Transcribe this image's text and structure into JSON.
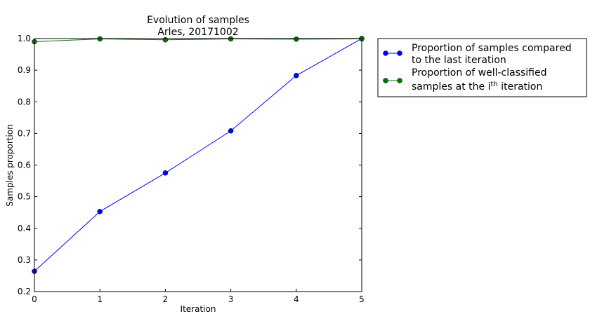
{
  "chart_data": {
    "type": "line",
    "title": "Evolution of samples",
    "subtitle": "Arles, 20171002",
    "xlabel": "Iteration",
    "ylabel": "Samples proportion",
    "x": [
      0,
      1,
      2,
      3,
      4,
      5
    ],
    "xlim": [
      0,
      5
    ],
    "ylim": [
      0.2,
      1.0
    ],
    "x_ticks": [
      "0",
      "1",
      "2",
      "3",
      "4",
      "5"
    ],
    "y_ticks": [
      "0.2",
      "0.3",
      "0.4",
      "0.5",
      "0.6",
      "0.7",
      "0.8",
      "0.9",
      "1.0"
    ],
    "grid": false,
    "legend_position": "outside-right-top",
    "series": [
      {
        "name_line1": "Proportion of samples compared",
        "name_line2": "to the last iteration",
        "color": "#0000ff",
        "values": [
          0.264,
          0.453,
          0.575,
          0.708,
          0.883,
          1.0
        ]
      },
      {
        "name_line1": "Proportion of well-classified",
        "name_line2_pre": "samples at the i",
        "name_line2_sup": "th",
        "name_line2_post": " iteration",
        "color": "#007700",
        "values": [
          0.99,
          0.999,
          0.996,
          0.999,
          0.998,
          0.999
        ]
      }
    ]
  }
}
